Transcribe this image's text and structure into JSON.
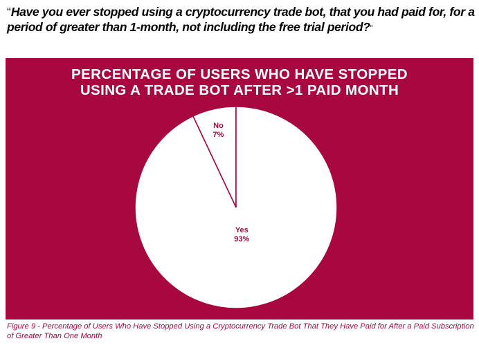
{
  "question": {
    "open_quote": "“",
    "text": "Have you ever stopped using a cryptocurrency trade bot, that you had paid for, for a period of greater than 1-month, not including the free trial period?",
    "close_quote": "”"
  },
  "colors": {
    "panel": "#a8073f",
    "slice_fill": "#ffffff",
    "label": "#a8073f"
  },
  "chart_data": {
    "type": "pie",
    "title_lines": [
      "PERCENTAGE OF USERS WHO HAVE STOPPED",
      "USING A TRADE BOT AFTER >1 PAID MONTH"
    ],
    "slices": [
      {
        "label": "No",
        "value": 7,
        "value_label": "7%"
      },
      {
        "label": "Yes",
        "value": 93,
        "value_label": "93%"
      }
    ],
    "legend": "none"
  },
  "caption": "Figure 9 - Percentage of Users Who Have Stopped Using a Cryptocurrency Trade Bot That They Have Paid for After a Paid Subscription of Greater Than One Month"
}
